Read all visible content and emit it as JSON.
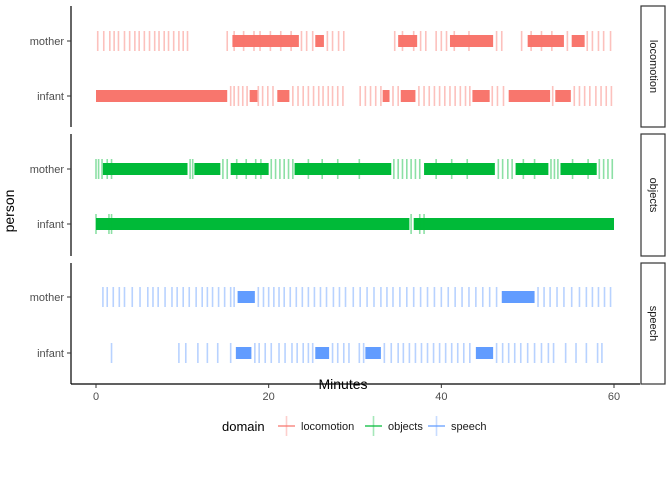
{
  "chart_data": {
    "type": "event-timeline",
    "xlabel": "Minutes",
    "ylabel": "person",
    "xlim": [
      0,
      60
    ],
    "x_ticks": [
      0,
      20,
      40,
      60
    ],
    "persons": [
      "mother",
      "infant"
    ],
    "grid": false,
    "legend": {
      "title": "domain",
      "position": "bottom",
      "entries": [
        "locomotion",
        "objects",
        "speech"
      ]
    },
    "colors": {
      "locomotion": "#F8766D",
      "objects": "#00BA38",
      "speech": "#619CFF"
    },
    "panels": [
      {
        "domain": "locomotion",
        "strip_label": "locomotion",
        "rows": {
          "mother": {
            "solid": [
              [
                15.8,
                23.5
              ],
              [
                25.4,
                26.4
              ],
              [
                35.0,
                37.2
              ],
              [
                41.0,
                46.0
              ],
              [
                50.0,
                54.2
              ],
              [
                55.1,
                56.6
              ]
            ],
            "events": [
              0.2,
              0.9,
              1.6,
              2.1,
              2.6,
              3.3,
              3.9,
              4.5,
              5.0,
              5.6,
              6.2,
              6.8,
              7.3,
              7.9,
              8.4,
              9.0,
              9.6,
              10.1,
              10.6,
              15.2,
              16.0,
              17.1,
              18.3,
              19.0,
              20.2,
              21.4,
              22.6,
              23.8,
              24.4,
              25.1,
              26.8,
              27.4,
              28.1,
              28.7,
              34.6,
              35.5,
              36.8,
              37.6,
              38.2,
              39.4,
              40.0,
              40.6,
              41.5,
              43.2,
              46.4,
              47.0,
              49.3,
              50.4,
              51.6,
              52.8,
              54.6,
              56.9,
              57.5,
              58.2,
              58.8,
              59.6
            ]
          },
          "infant": {
            "solid": [
              [
                0,
                15.2
              ],
              [
                17.8,
                18.7
              ],
              [
                21.0,
                22.4
              ],
              [
                33.2,
                34.0
              ],
              [
                35.3,
                37.0
              ],
              [
                43.6,
                45.6
              ],
              [
                47.8,
                52.6
              ],
              [
                53.2,
                55.0
              ]
            ],
            "events": [
              15.6,
              16.0,
              16.5,
              17.0,
              17.5,
              18.8,
              19.3,
              19.9,
              20.5,
              22.8,
              23.4,
              24.0,
              24.6,
              25.2,
              25.8,
              26.3,
              26.9,
              27.4,
              28.0,
              28.6,
              30.6,
              31.2,
              31.8,
              32.4,
              33.0,
              34.4,
              35.0,
              37.4,
              38.0,
              38.6,
              39.2,
              39.8,
              40.4,
              41.0,
              41.6,
              42.2,
              42.8,
              43.3,
              45.9,
              46.5,
              47.2,
              52.9,
              55.4,
              56.0,
              56.6,
              57.2,
              57.9,
              58.5,
              59.1,
              59.7
            ]
          }
        }
      },
      {
        "domain": "objects",
        "strip_label": "objects",
        "rows": {
          "mother": {
            "solid": [
              [
                0.8,
                10.6
              ],
              [
                11.4,
                14.4
              ],
              [
                15.6,
                20.0
              ],
              [
                23.0,
                34.2
              ],
              [
                38.0,
                46.2
              ],
              [
                48.6,
                52.4
              ],
              [
                53.8,
                58.0
              ]
            ],
            "events": [
              0.0,
              0.3,
              0.7,
              1.3,
              1.8,
              10.9,
              11.2,
              14.7,
              15.2,
              16.3,
              17.4,
              18.5,
              19.1,
              20.3,
              20.8,
              21.3,
              21.8,
              22.3,
              22.8,
              24.6,
              26.2,
              28.0,
              30.5,
              34.5,
              35.0,
              35.5,
              36.0,
              36.5,
              37.0,
              37.5,
              39.4,
              41.2,
              43.0,
              46.6,
              47.1,
              47.7,
              48.2,
              49.5,
              50.8,
              52.7,
              53.1,
              53.5,
              55.2,
              57.0,
              58.3,
              58.8,
              59.3,
              59.8
            ]
          },
          "infant": {
            "solid": [
              [
                0,
                36.3
              ],
              [
                36.8,
                60.0
              ]
            ],
            "events": [
              0.0,
              1.5,
              1.8,
              36.5,
              37.5,
              38.0
            ]
          }
        }
      },
      {
        "domain": "speech",
        "strip_label": "speech",
        "rows": {
          "mother": {
            "solid": [
              [
                16.4,
                18.4
              ],
              [
                47.0,
                50.8
              ]
            ],
            "events": [
              0.8,
              1.3,
              2.0,
              2.7,
              3.3,
              4.2,
              5.1,
              6.0,
              6.6,
              7.2,
              8.0,
              8.8,
              9.4,
              10.1,
              10.8,
              11.6,
              12.3,
              12.9,
              13.5,
              14.2,
              14.9,
              15.6,
              16.0,
              18.8,
              19.4,
              20.0,
              20.6,
              21.2,
              21.8,
              22.5,
              23.2,
              23.9,
              24.6,
              25.3,
              26.0,
              26.7,
              27.5,
              28.2,
              28.9,
              29.8,
              30.6,
              31.4,
              32.2,
              33.0,
              33.7,
              34.4,
              35.2,
              36.0,
              36.8,
              37.6,
              38.4,
              39.2,
              40.0,
              40.8,
              41.6,
              42.4,
              43.2,
              44.0,
              44.8,
              45.6,
              46.4,
              51.2,
              51.9,
              52.6,
              53.4,
              54.2,
              55.1,
              56.0,
              56.8,
              57.5,
              58.2,
              58.9,
              59.6
            ]
          },
          "infant": {
            "solid": [
              [
                16.2,
                18.0
              ],
              [
                25.4,
                27.0
              ],
              [
                31.2,
                33.0
              ],
              [
                44.0,
                46.0
              ]
            ],
            "events": [
              1.8,
              9.6,
              10.4,
              11.8,
              12.9,
              14.1,
              15.6,
              18.4,
              18.9,
              19.6,
              20.3,
              21.2,
              21.9,
              22.7,
              23.3,
              24.0,
              24.6,
              25.1,
              27.4,
              28.0,
              28.7,
              29.3,
              30.5,
              31.0,
              33.4,
              34.2,
              35.0,
              35.6,
              36.3,
              37.0,
              37.7,
              38.4,
              39.1,
              39.8,
              40.5,
              41.2,
              41.9,
              42.6,
              43.3,
              46.4,
              47.1,
              47.8,
              48.5,
              49.2,
              50.0,
              50.8,
              51.6,
              52.4,
              53.0,
              54.4,
              55.6,
              56.8,
              58.1,
              58.6
            ]
          }
        }
      }
    ]
  }
}
